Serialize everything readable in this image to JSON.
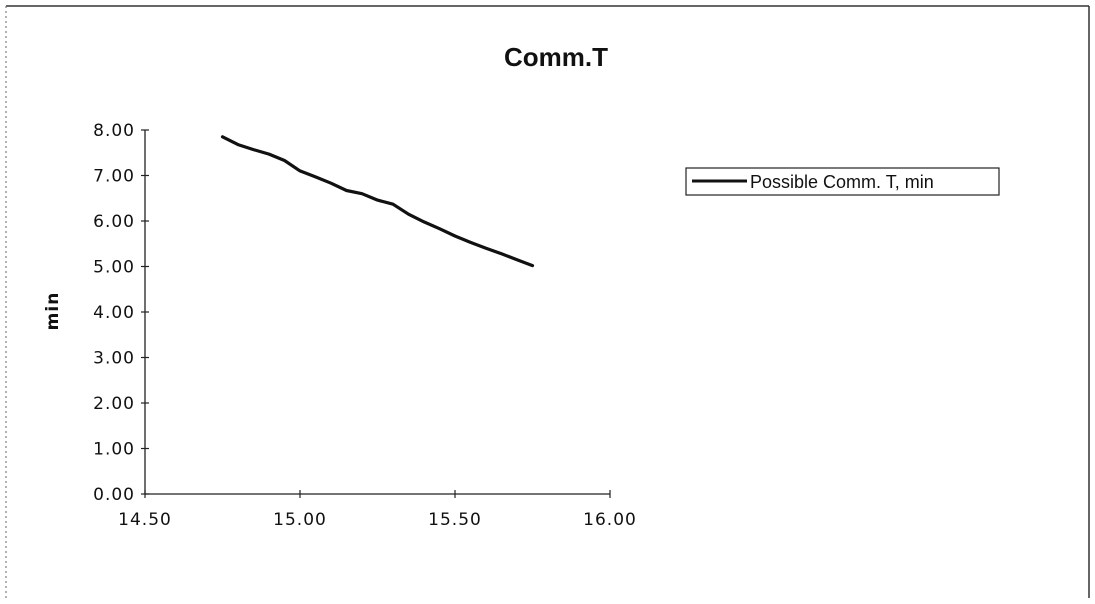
{
  "chart_data": {
    "type": "line",
    "title": "Comm.T",
    "xlabel": "",
    "ylabel": "min",
    "xlim": [
      14.5,
      16.0
    ],
    "ylim": [
      0.0,
      8.0
    ],
    "x_ticks": [
      "14.50",
      "15.00",
      "15.50",
      "16.00"
    ],
    "y_ticks": [
      "0.00",
      "1.00",
      "2.00",
      "3.00",
      "4.00",
      "5.00",
      "6.00",
      "7.00",
      "8.00"
    ],
    "grid": false,
    "legend_position": "right",
    "series": [
      {
        "name": "Possible Comm. T, min",
        "color": "#111111",
        "x": [
          14.75,
          14.8,
          14.85,
          14.9,
          14.95,
          15.0,
          15.05,
          15.1,
          15.15,
          15.2,
          15.25,
          15.3,
          15.35,
          15.4,
          15.45,
          15.5,
          15.55,
          15.6,
          15.65,
          15.7,
          15.75
        ],
        "y": [
          7.85,
          7.68,
          7.57,
          7.47,
          7.33,
          7.1,
          6.97,
          6.83,
          6.67,
          6.6,
          6.46,
          6.37,
          6.15,
          5.98,
          5.83,
          5.67,
          5.53,
          5.4,
          5.28,
          5.15,
          5.02
        ]
      }
    ]
  }
}
